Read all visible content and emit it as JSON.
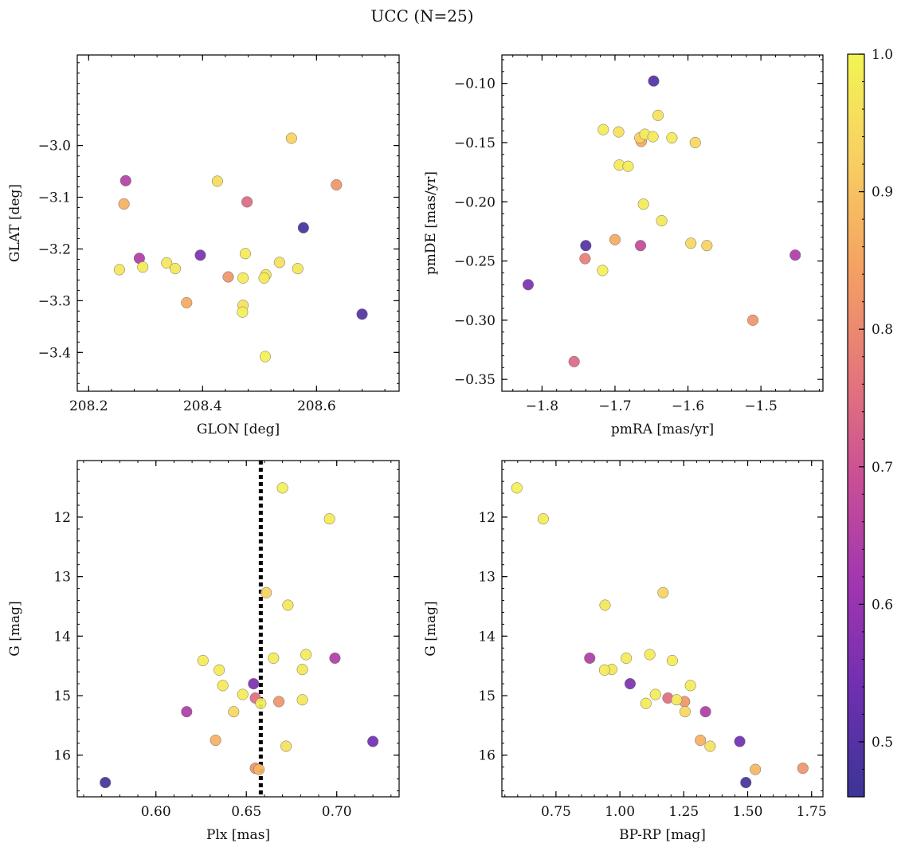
{
  "figure": {
    "title": "UCC (N=25)"
  },
  "colorbar": {
    "range": [
      0.46,
      1.0
    ],
    "ticks": [
      0.5,
      0.6,
      0.7,
      0.8,
      0.9,
      1.0
    ],
    "tick_labels": [
      "0.5",
      "0.6",
      "0.7",
      "0.8",
      "0.9",
      "1.0"
    ],
    "colormap": "plasma",
    "color_stops": [
      "#3a3596",
      "#6e2fb0",
      "#a036b0",
      "#c94f95",
      "#e5787a",
      "#f4a262",
      "#f8cf62",
      "#f2f554"
    ]
  },
  "chart_data": [
    {
      "type": "scatter",
      "xlabel": "GLON [deg]",
      "ylabel": "GLAT [deg]",
      "xlim": [
        208.18,
        208.745
      ],
      "ylim": [
        -3.475,
        -2.825
      ],
      "xticks": [
        208.2,
        208.4,
        208.6
      ],
      "xtick_labels": [
        "208.2",
        "208.4",
        "208.6"
      ],
      "yticks": [
        -3.4,
        -3.3,
        -3.2,
        -3.1,
        -3.0
      ],
      "ytick_labels": [
        "−3.4",
        "−3.3",
        "−3.2",
        "−3.1",
        "−3.0"
      ],
      "points": [
        {
          "x": 208.556,
          "y": -2.986,
          "c": 0.93
        },
        {
          "x": 208.265,
          "y": -3.068,
          "c": 0.65
        },
        {
          "x": 208.426,
          "y": -3.069,
          "c": 0.95
        },
        {
          "x": 208.635,
          "y": -3.076,
          "c": 0.82
        },
        {
          "x": 208.262,
          "y": -3.113,
          "c": 0.87
        },
        {
          "x": 208.478,
          "y": -3.109,
          "c": 0.74
        },
        {
          "x": 208.577,
          "y": -3.159,
          "c": 0.48
        },
        {
          "x": 208.475,
          "y": -3.209,
          "c": 0.98
        },
        {
          "x": 208.396,
          "y": -3.212,
          "c": 0.56
        },
        {
          "x": 208.289,
          "y": -3.218,
          "c": 0.64
        },
        {
          "x": 208.337,
          "y": -3.227,
          "c": 0.97
        },
        {
          "x": 208.535,
          "y": -3.226,
          "c": 0.96
        },
        {
          "x": 208.254,
          "y": -3.24,
          "c": 0.97
        },
        {
          "x": 208.295,
          "y": -3.235,
          "c": 0.98
        },
        {
          "x": 208.352,
          "y": -3.238,
          "c": 0.97
        },
        {
          "x": 208.567,
          "y": -3.238,
          "c": 0.97
        },
        {
          "x": 208.445,
          "y": -3.254,
          "c": 0.82
        },
        {
          "x": 208.471,
          "y": -3.256,
          "c": 0.98
        },
        {
          "x": 208.511,
          "y": -3.25,
          "c": 0.97
        },
        {
          "x": 208.508,
          "y": -3.256,
          "c": 0.98
        },
        {
          "x": 208.372,
          "y": -3.304,
          "c": 0.86
        },
        {
          "x": 208.471,
          "y": -3.309,
          "c": 0.96
        },
        {
          "x": 208.47,
          "y": -3.322,
          "c": 0.99
        },
        {
          "x": 208.68,
          "y": -3.326,
          "c": 0.5
        },
        {
          "x": 208.51,
          "y": -3.408,
          "c": 0.99
        }
      ]
    },
    {
      "type": "scatter",
      "xlabel": "pmRA [mas/yr]",
      "ylabel": "pmDE [mas/yr]",
      "xlim": [
        -1.855,
        -1.415
      ],
      "ylim": [
        -0.36,
        -0.076
      ],
      "xticks": [
        -1.8,
        -1.7,
        -1.6,
        -1.5
      ],
      "xtick_labels": [
        "−1.8",
        "−1.7",
        "−1.6",
        "−1.5"
      ],
      "yticks": [
        -0.35,
        -0.3,
        -0.25,
        -0.2,
        -0.15,
        -0.1
      ],
      "ytick_labels": [
        "−0.35",
        "−0.30",
        "−0.25",
        "−0.20",
        "−0.15",
        "−0.10"
      ],
      "points": [
        {
          "x": -1.647,
          "y": -0.098,
          "c": 0.5
        },
        {
          "x": -1.641,
          "y": -0.127,
          "c": 0.96
        },
        {
          "x": -1.716,
          "y": -0.139,
          "c": 0.98
        },
        {
          "x": -1.695,
          "y": -0.141,
          "c": 0.96
        },
        {
          "x": -1.659,
          "y": -0.143,
          "c": 0.98
        },
        {
          "x": -1.648,
          "y": -0.145,
          "c": 0.98
        },
        {
          "x": -1.622,
          "y": -0.146,
          "c": 0.98
        },
        {
          "x": -1.666,
          "y": -0.146,
          "c": 0.93
        },
        {
          "x": -1.664,
          "y": -0.149,
          "c": 0.86
        },
        {
          "x": -1.59,
          "y": -0.15,
          "c": 0.94
        },
        {
          "x": -1.694,
          "y": -0.169,
          "c": 0.98
        },
        {
          "x": -1.682,
          "y": -0.17,
          "c": 0.98
        },
        {
          "x": -1.661,
          "y": -0.202,
          "c": 0.98
        },
        {
          "x": -1.636,
          "y": -0.216,
          "c": 0.97
        },
        {
          "x": -1.7,
          "y": -0.232,
          "c": 0.86
        },
        {
          "x": -1.596,
          "y": -0.235,
          "c": 0.94
        },
        {
          "x": -1.574,
          "y": -0.237,
          "c": 0.93
        },
        {
          "x": -1.74,
          "y": -0.237,
          "c": 0.5
        },
        {
          "x": -1.665,
          "y": -0.237,
          "c": 0.68
        },
        {
          "x": -1.453,
          "y": -0.245,
          "c": 0.64
        },
        {
          "x": -1.741,
          "y": -0.248,
          "c": 0.78
        },
        {
          "x": -1.717,
          "y": -0.258,
          "c": 0.99
        },
        {
          "x": -1.819,
          "y": -0.27,
          "c": 0.56
        },
        {
          "x": -1.511,
          "y": -0.3,
          "c": 0.82
        },
        {
          "x": -1.756,
          "y": -0.335,
          "c": 0.74
        }
      ]
    },
    {
      "type": "scatter",
      "xlabel": "Plx [mas]",
      "ylabel": "G [mag]",
      "xlim": [
        0.5565,
        0.7345
      ],
      "ylim": [
        16.7,
        11.05
      ],
      "xticks": [
        0.6,
        0.65,
        0.7
      ],
      "xtick_labels": [
        "0.60",
        "0.65",
        "0.70"
      ],
      "yticks": [
        12,
        13,
        14,
        15,
        16
      ],
      "ytick_labels": [
        "12",
        "13",
        "14",
        "15",
        "16"
      ],
      "vline": 0.658,
      "points": [
        {
          "x": 0.67,
          "y": 11.51,
          "c": 0.99
        },
        {
          "x": 0.696,
          "y": 12.03,
          "c": 0.98
        },
        {
          "x": 0.661,
          "y": 13.27,
          "c": 0.93
        },
        {
          "x": 0.673,
          "y": 13.48,
          "c": 0.97
        },
        {
          "x": 0.683,
          "y": 14.31,
          "c": 0.98
        },
        {
          "x": 0.699,
          "y": 14.37,
          "c": 0.64
        },
        {
          "x": 0.665,
          "y": 14.37,
          "c": 0.98
        },
        {
          "x": 0.626,
          "y": 14.41,
          "c": 0.98
        },
        {
          "x": 0.635,
          "y": 14.57,
          "c": 0.98
        },
        {
          "x": 0.681,
          "y": 14.56,
          "c": 0.97
        },
        {
          "x": 0.637,
          "y": 14.83,
          "c": 0.98
        },
        {
          "x": 0.654,
          "y": 14.8,
          "c": 0.56
        },
        {
          "x": 0.648,
          "y": 14.98,
          "c": 0.98
        },
        {
          "x": 0.655,
          "y": 15.04,
          "c": 0.75
        },
        {
          "x": 0.681,
          "y": 15.07,
          "c": 0.97
        },
        {
          "x": 0.668,
          "y": 15.1,
          "c": 0.82
        },
        {
          "x": 0.658,
          "y": 15.13,
          "c": 0.98
        },
        {
          "x": 0.643,
          "y": 15.27,
          "c": 0.94
        },
        {
          "x": 0.617,
          "y": 15.27,
          "c": 0.64
        },
        {
          "x": 0.633,
          "y": 15.75,
          "c": 0.87
        },
        {
          "x": 0.72,
          "y": 15.77,
          "c": 0.54
        },
        {
          "x": 0.672,
          "y": 15.85,
          "c": 0.96
        },
        {
          "x": 0.655,
          "y": 16.22,
          "c": 0.82
        },
        {
          "x": 0.657,
          "y": 16.24,
          "c": 0.88
        },
        {
          "x": 0.572,
          "y": 16.46,
          "c": 0.48
        }
      ]
    },
    {
      "type": "scatter",
      "xlabel": "BP-RP [mag]",
      "ylabel": "G [mag]",
      "xlim": [
        0.5383,
        1.7945
      ],
      "ylim": [
        16.7,
        11.05
      ],
      "xticks": [
        0.75,
        1.0,
        1.25,
        1.5,
        1.75
      ],
      "xtick_labels": [
        "0.75",
        "1.00",
        "1.25",
        "1.50",
        "1.75"
      ],
      "yticks": [
        12,
        13,
        14,
        15,
        16
      ],
      "ytick_labels": [
        "12",
        "13",
        "14",
        "15",
        "16"
      ],
      "points": [
        {
          "x": 0.597,
          "y": 11.51,
          "c": 0.99
        },
        {
          "x": 0.7,
          "y": 12.03,
          "c": 0.98
        },
        {
          "x": 1.169,
          "y": 13.27,
          "c": 0.93
        },
        {
          "x": 0.942,
          "y": 13.48,
          "c": 0.97
        },
        {
          "x": 1.117,
          "y": 14.31,
          "c": 0.98
        },
        {
          "x": 0.882,
          "y": 14.37,
          "c": 0.64
        },
        {
          "x": 1.025,
          "y": 14.37,
          "c": 0.98
        },
        {
          "x": 1.205,
          "y": 14.41,
          "c": 0.98
        },
        {
          "x": 0.94,
          "y": 14.57,
          "c": 0.98
        },
        {
          "x": 0.968,
          "y": 14.56,
          "c": 0.97
        },
        {
          "x": 1.276,
          "y": 14.83,
          "c": 0.98
        },
        {
          "x": 1.04,
          "y": 14.8,
          "c": 0.56
        },
        {
          "x": 1.139,
          "y": 14.98,
          "c": 0.98
        },
        {
          "x": 1.188,
          "y": 15.04,
          "c": 0.75
        },
        {
          "x": 1.222,
          "y": 15.07,
          "c": 0.97
        },
        {
          "x": 1.253,
          "y": 15.1,
          "c": 0.82
        },
        {
          "x": 1.102,
          "y": 15.13,
          "c": 0.98
        },
        {
          "x": 1.255,
          "y": 15.27,
          "c": 0.94
        },
        {
          "x": 1.335,
          "y": 15.27,
          "c": 0.64
        },
        {
          "x": 1.315,
          "y": 15.75,
          "c": 0.87
        },
        {
          "x": 1.469,
          "y": 15.77,
          "c": 0.54
        },
        {
          "x": 1.353,
          "y": 15.85,
          "c": 0.96
        },
        {
          "x": 1.716,
          "y": 16.22,
          "c": 0.82
        },
        {
          "x": 1.53,
          "y": 16.24,
          "c": 0.88
        },
        {
          "x": 1.493,
          "y": 16.46,
          "c": 0.48
        }
      ]
    }
  ]
}
